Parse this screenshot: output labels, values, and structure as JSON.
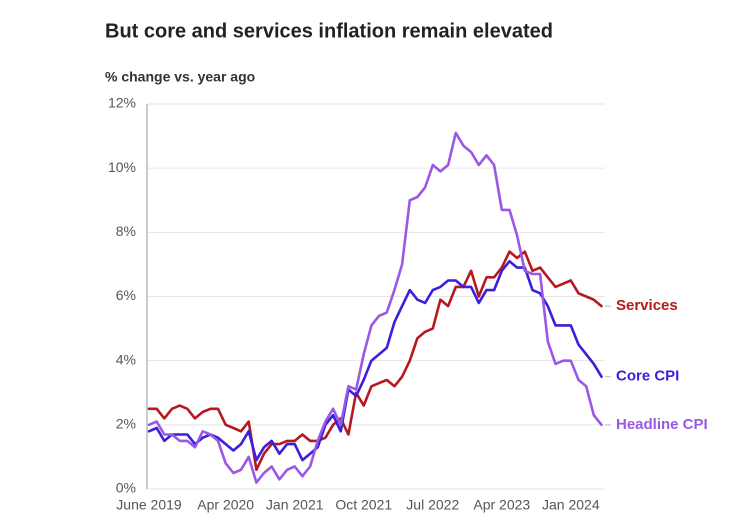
{
  "chart_data": {
    "type": "line",
    "title": "But core and services inflation remain elevated",
    "subtitle": "% change vs. year ago",
    "categories": [
      "June 2019",
      null,
      null,
      null,
      null,
      null,
      null,
      null,
      null,
      null,
      "Apr 2020",
      null,
      null,
      null,
      null,
      null,
      null,
      null,
      null,
      "Jan 2021",
      null,
      null,
      null,
      null,
      null,
      null,
      null,
      null,
      "Oct 2021",
      null,
      null,
      null,
      null,
      null,
      null,
      null,
      null,
      "Jul 2022",
      null,
      null,
      null,
      null,
      null,
      null,
      null,
      null,
      "Apr 2023",
      null,
      null,
      null,
      null,
      null,
      null,
      null,
      null,
      "Jan 2024",
      null,
      null,
      null,
      null
    ],
    "series": [
      {
        "name": "Services",
        "color": "#b5191f",
        "values": [
          2.5,
          2.5,
          2.2,
          2.5,
          2.6,
          2.5,
          2.2,
          2.4,
          2.5,
          2.5,
          2.0,
          1.9,
          1.8,
          2.1,
          0.6,
          1.1,
          1.4,
          1.4,
          1.5,
          1.5,
          1.7,
          1.5,
          1.5,
          1.6,
          2.0,
          2.2,
          1.7,
          3.0,
          2.6,
          3.2,
          3.3,
          3.4,
          3.2,
          3.5,
          4.0,
          4.7,
          4.9,
          5.0,
          5.9,
          5.7,
          6.3,
          6.3,
          6.8,
          6.0,
          6.6,
          6.6,
          6.9,
          7.4,
          7.2,
          7.4,
          6.8,
          6.9,
          6.6,
          6.3,
          6.4,
          6.5,
          6.1,
          6.0,
          5.9,
          5.7
        ]
      },
      {
        "name": "Core CPI",
        "color": "#3b1fdc",
        "values": [
          1.8,
          1.9,
          1.5,
          1.7,
          1.7,
          1.7,
          1.4,
          1.6,
          1.7,
          1.6,
          1.4,
          1.2,
          1.4,
          1.8,
          0.9,
          1.3,
          1.5,
          1.1,
          1.4,
          1.4,
          0.9,
          1.1,
          1.3,
          2.0,
          2.3,
          1.8,
          3.1,
          2.9,
          3.4,
          4.0,
          4.2,
          4.4,
          5.2,
          5.7,
          6.2,
          5.9,
          5.8,
          6.2,
          6.3,
          6.5,
          6.5,
          6.3,
          6.3,
          5.8,
          6.2,
          6.2,
          6.8,
          7.1,
          6.9,
          6.9,
          6.2,
          6.1,
          5.7,
          5.1,
          5.1,
          5.1,
          4.5,
          4.2,
          3.9,
          3.5
        ]
      },
      {
        "name": "Headline CPI",
        "color": "#9a58e4",
        "values": [
          2.0,
          2.1,
          1.7,
          1.7,
          1.5,
          1.5,
          1.3,
          1.8,
          1.7,
          1.5,
          0.8,
          0.5,
          0.6,
          1.0,
          0.2,
          0.5,
          0.7,
          0.3,
          0.6,
          0.7,
          0.4,
          0.7,
          1.5,
          2.1,
          2.5,
          2.0,
          3.2,
          3.1,
          4.2,
          5.1,
          5.4,
          5.5,
          6.2,
          7.0,
          9.0,
          9.1,
          9.4,
          10.1,
          9.9,
          10.1,
          11.1,
          10.7,
          10.5,
          10.1,
          10.4,
          10.1,
          8.7,
          8.7,
          7.9,
          6.8,
          6.7,
          6.7,
          4.6,
          3.9,
          4.0,
          4.0,
          3.4,
          3.2,
          2.3,
          2.0
        ]
      }
    ],
    "ylim": [
      0,
      12
    ],
    "yticks": [
      {
        "value": 0,
        "label": "0%"
      },
      {
        "value": 2,
        "label": "2%"
      },
      {
        "value": 4,
        "label": "4%"
      },
      {
        "value": 6,
        "label": "6%"
      },
      {
        "value": 8,
        "label": "8%"
      },
      {
        "value": 10,
        "label": "10%"
      },
      {
        "value": 12,
        "label": "12%"
      }
    ],
    "grid": true
  }
}
